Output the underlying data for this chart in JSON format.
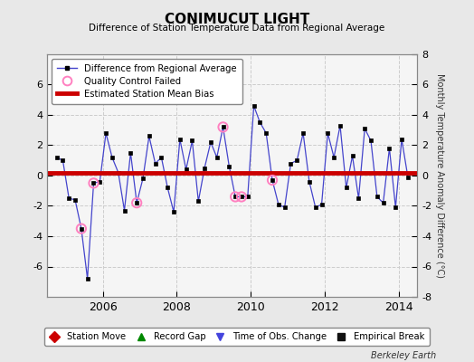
{
  "title": "CONIMUCUT LIGHT",
  "subtitle": "Difference of Station Temperature Data from Regional Average",
  "ylabel_right": "Monthly Temperature Anomaly Difference (°C)",
  "footer": "Berkeley Earth",
  "xlim": [
    2004.5,
    2014.5
  ],
  "ylim": [
    -8,
    8
  ],
  "yticks": [
    -6,
    -4,
    -2,
    0,
    2,
    4,
    6
  ],
  "yticks_right": [
    -8,
    -6,
    -4,
    -2,
    0,
    2,
    4,
    6,
    8
  ],
  "xticks": [
    2006,
    2008,
    2010,
    2012,
    2014
  ],
  "bias_level": 0.15,
  "bg_color": "#e8e8e8",
  "plot_bg_color": "#f5f5f5",
  "line_color": "#4444cc",
  "marker_color": "#000000",
  "bias_color": "#cc0000",
  "qc_color": "#ff80c0",
  "times": [
    2004.75,
    2004.917,
    2005.083,
    2005.25,
    2005.417,
    2005.583,
    2005.75,
    2005.917,
    2006.083,
    2006.25,
    2006.417,
    2006.583,
    2006.75,
    2006.917,
    2007.083,
    2007.25,
    2007.417,
    2007.583,
    2007.75,
    2007.917,
    2008.083,
    2008.25,
    2008.417,
    2008.583,
    2008.75,
    2008.917,
    2009.083,
    2009.25,
    2009.417,
    2009.583,
    2009.75,
    2009.917,
    2010.083,
    2010.25,
    2010.417,
    2010.583,
    2010.75,
    2010.917,
    2011.083,
    2011.25,
    2011.417,
    2011.583,
    2011.75,
    2011.917,
    2012.083,
    2012.25,
    2012.417,
    2012.583,
    2012.75,
    2012.917,
    2013.083,
    2013.25,
    2013.417,
    2013.583,
    2013.75,
    2013.917,
    2014.083,
    2014.25
  ],
  "values": [
    1.2,
    1.0,
    -1.5,
    -1.6,
    -3.5,
    -6.8,
    -0.5,
    -0.4,
    2.8,
    1.2,
    0.2,
    -2.3,
    1.5,
    -1.8,
    -0.2,
    2.6,
    0.8,
    1.2,
    -0.8,
    -2.4,
    2.4,
    0.4,
    2.3,
    -1.7,
    0.5,
    2.2,
    1.2,
    3.2,
    0.6,
    -1.4,
    -1.4,
    -1.4,
    4.6,
    3.5,
    2.8,
    -0.3,
    -1.9,
    -2.1,
    0.8,
    1.0,
    2.8,
    -0.4,
    -2.1,
    -1.9,
    2.8,
    1.2,
    3.3,
    -0.8,
    1.3,
    -1.5,
    3.1,
    2.3,
    -1.4,
    -1.8,
    1.8,
    -2.1,
    2.4,
    -0.1
  ],
  "qc_failed_indices": [
    4,
    6,
    13,
    27,
    29,
    30,
    35
  ],
  "legend1_items": [
    {
      "label": "Difference from Regional Average"
    },
    {
      "label": "Quality Control Failed"
    },
    {
      "label": "Estimated Station Mean Bias"
    }
  ],
  "legend2_items": [
    {
      "label": "Station Move",
      "color": "#cc0000",
      "marker": "D"
    },
    {
      "label": "Record Gap",
      "color": "#008800",
      "marker": "^"
    },
    {
      "label": "Time of Obs. Change",
      "color": "#4444dd",
      "marker": "v"
    },
    {
      "label": "Empirical Break",
      "color": "#111111",
      "marker": "s"
    }
  ]
}
